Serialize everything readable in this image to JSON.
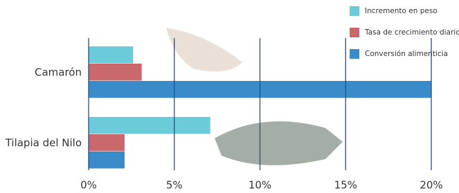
{
  "chart_data": {
    "type": "bar",
    "orientation": "horizontal",
    "categories": [
      "Camarón",
      "Tilapia del Nilo"
    ],
    "series": [
      {
        "name": "Incremento en peso",
        "color": "#6ccbd8",
        "values": [
          2.6,
          7.1
        ]
      },
      {
        "name": "Tasa de crecimiento diario",
        "color": "#c9696e",
        "values": [
          3.1,
          2.1
        ]
      },
      {
        "name": "Conversión alimenticia",
        "color": "#3a8cc8",
        "values": [
          20,
          2.1
        ]
      }
    ],
    "xlim": [
      0,
      20
    ],
    "xticks": [
      {
        "value": 0,
        "label": "0%"
      },
      {
        "value": 5,
        "label": "5%"
      },
      {
        "value": 10,
        "label": "10%"
      },
      {
        "value": 15,
        "label": "15%"
      },
      {
        "value": 20,
        "label": "20%"
      }
    ],
    "grid": true,
    "grid_color": "#2a4a8a",
    "legend": "top-right"
  }
}
